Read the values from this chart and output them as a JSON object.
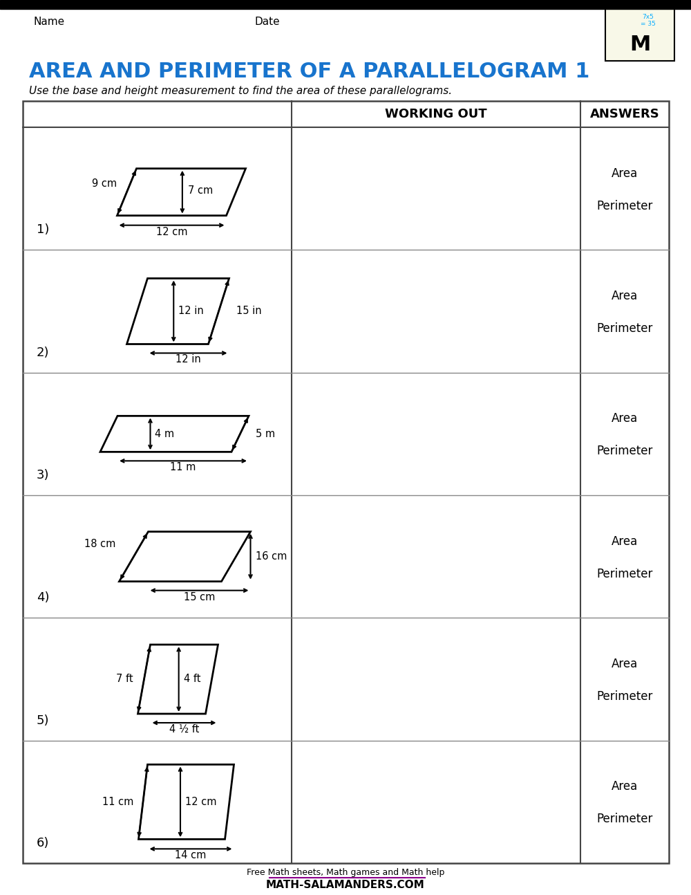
{
  "title": "AREA AND PERIMETER OF A PARALLELOGRAM 1",
  "subtitle": "Use the base and height measurement to find the area of these parallelograms.",
  "name_label": "Name",
  "date_label": "Date",
  "working_out_header": "WORKING OUT",
  "answers_header": "ANSWERS",
  "area_label": "Area",
  "perimeter_label": "Perimeter",
  "footer_line1": "Free Math sheets, Math games and Math help",
  "footer_line2": "MATH-SALAMANDERS.COM",
  "bg_color": "#ffffff",
  "title_color": "#1874CD",
  "problems": [
    {
      "num": "1)",
      "side_label": "9 cm",
      "height_label": "7 cm",
      "base_label": "12 cm",
      "shape_type": 1
    },
    {
      "num": "2)",
      "side_label": "15 in",
      "height_label": "12 in",
      "base_label": "12 in",
      "shape_type": 2
    },
    {
      "num": "3)",
      "side_label": "5 m",
      "height_label": "4 m",
      "base_label": "11 m",
      "shape_type": 3
    },
    {
      "num": "4)",
      "side_label": "18 cm",
      "height_label": "16 cm",
      "base_label": "15 cm",
      "shape_type": 4
    },
    {
      "num": "5)",
      "side_label": "7 ft",
      "height_label": "4 ft",
      "base_label": "4 ½ ft",
      "shape_type": 5
    },
    {
      "num": "6)",
      "side_label": "11 cm",
      "height_label": "12 cm",
      "base_label": "14 cm",
      "shape_type": 6
    }
  ]
}
